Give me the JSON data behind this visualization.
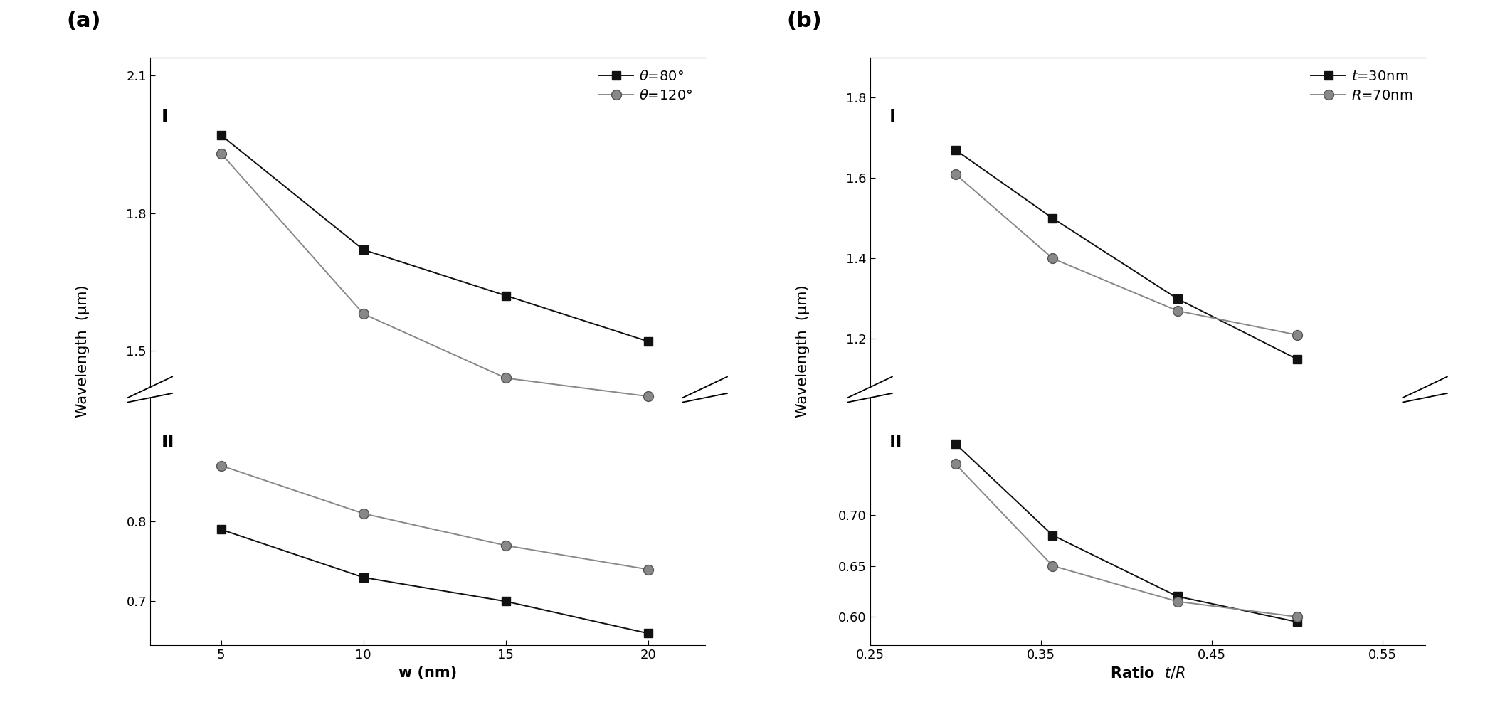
{
  "panel_a": {
    "x": [
      5,
      10,
      15,
      20
    ],
    "series1_upper": [
      1.97,
      1.72,
      1.62,
      1.52
    ],
    "series2_upper": [
      1.93,
      1.58,
      1.44,
      1.4
    ],
    "series1_lower": [
      0.79,
      0.73,
      0.7,
      0.66
    ],
    "series2_lower": [
      0.87,
      0.81,
      0.77,
      0.74
    ],
    "xlabel": "w (nm)",
    "ylabel": "Wavelength  (μm)",
    "label1": "$\\theta$=80°",
    "label2": "$\\theta$=120°",
    "panel_label": "(a)",
    "region_I": "I",
    "region_II": "II",
    "upper_ylim": [
      1.42,
      2.14
    ],
    "lower_ylim": [
      0.645,
      0.955
    ],
    "upper_yticks": [
      1.5,
      1.8,
      2.1
    ],
    "lower_yticks": [
      0.7,
      0.8
    ],
    "xlim": [
      2.5,
      22
    ],
    "xticks": [
      5,
      10,
      15,
      20
    ]
  },
  "panel_b": {
    "x": [
      0.3,
      0.357,
      0.43,
      0.5
    ],
    "series1_upper": [
      1.67,
      1.5,
      1.3,
      1.15
    ],
    "series2_upper": [
      1.61,
      1.4,
      1.27,
      1.21
    ],
    "series1_lower": [
      0.77,
      0.68,
      0.62,
      0.595
    ],
    "series2_lower": [
      0.75,
      0.65,
      0.615,
      0.6
    ],
    "xlabel": "Ratio  $t/R$",
    "ylabel": "Wavelength  (μm)",
    "label1": "$t$=30nm",
    "label2": "$R$=70nm",
    "panel_label": "(b)",
    "region_I": "I",
    "region_II": "II",
    "upper_ylim": [
      1.08,
      1.9
    ],
    "lower_ylim": [
      0.572,
      0.815
    ],
    "upper_yticks": [
      1.2,
      1.4,
      1.6,
      1.8
    ],
    "lower_yticks": [
      0.6,
      0.65,
      0.7
    ],
    "xlim": [
      0.255,
      0.575
    ],
    "xticks": [
      0.25,
      0.35,
      0.45,
      0.55
    ],
    "xticklabels": [
      "0.25",
      "0.35",
      "0.45",
      "0.55"
    ]
  },
  "square_color": "#111111",
  "circle_color": "#888888",
  "marker_size": 8,
  "line_width": 1.4,
  "tick_font_size": 13,
  "label_font_size": 15,
  "panel_font_size": 22,
  "legend_font_size": 14
}
